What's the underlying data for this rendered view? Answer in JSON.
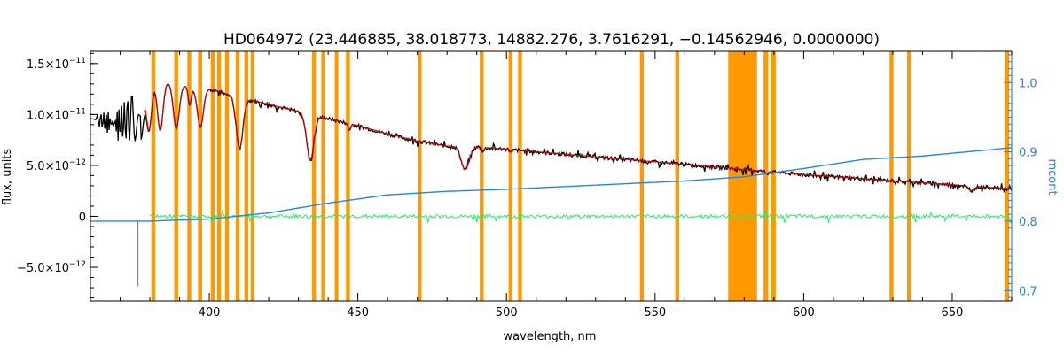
{
  "chart_data": {
    "type": "line",
    "title": "HD064972    (23.446885, 38.018773, 14882.276, 3.7616291, −0.14562946, 0.0000000)",
    "xlabel": "wavelength, nm",
    "ylabel_left": "flux, units",
    "ylabel_right": "mcont",
    "xlim": [
      360,
      670
    ],
    "ylim_left": [
      -8.3e-12,
      1.62e-11
    ],
    "ylim_right": [
      0.685,
      1.045
    ],
    "x_ticks": [
      {
        "value": 400,
        "label": "400"
      },
      {
        "value": 450,
        "label": "450"
      },
      {
        "value": 500,
        "label": "500"
      },
      {
        "value": 550,
        "label": "550"
      },
      {
        "value": 600,
        "label": "600"
      },
      {
        "value": 650,
        "label": "650"
      }
    ],
    "y_ticks_left": [
      {
        "value": 1.5e-11,
        "mant": "1.5",
        "exp": "−11"
      },
      {
        "value": 1e-11,
        "mant": "1.0",
        "exp": "−11"
      },
      {
        "value": 5e-12,
        "mant": "5.0",
        "exp": "−12"
      },
      {
        "value": 0,
        "mant": "0",
        "exp": ""
      },
      {
        "value": -5e-12,
        "mant": "−5.0",
        "exp": "−12"
      }
    ],
    "y_ticks_right": [
      {
        "value": 1.0,
        "label": "1.0"
      },
      {
        "value": 0.9,
        "label": "0.9"
      },
      {
        "value": 0.8,
        "label": "0.8"
      },
      {
        "value": 0.7,
        "label": "0.7"
      }
    ],
    "series": [
      {
        "key": "observed",
        "color": "#000000",
        "x": [
          360,
          370,
          375,
          380,
          385,
          390,
          395,
          400,
          410,
          420,
          430,
          440,
          450,
          460,
          470,
          480,
          490,
          500,
          520,
          540,
          560,
          580,
          600,
          620,
          640,
          660,
          670
        ],
        "y": [
          9.6e-12,
          9e-12,
          1e-11,
          1.3e-11,
          1.32e-11,
          1.3e-11,
          1.25e-11,
          1.25e-11,
          1.17e-11,
          1.1e-11,
          1.03e-11,
          9.6e-12,
          8.9e-12,
          8.1e-12,
          7.4e-12,
          6.9e-12,
          6.8e-12,
          6.6e-12,
          6.1e-12,
          5.6e-12,
          5.1e-12,
          4.6e-12,
          4.1e-12,
          3.7e-12,
          3.3e-12,
          2.9e-12,
          2.7e-12
        ]
      },
      {
        "key": "model",
        "color": "#d00000",
        "x": [
          378,
          385,
          390,
          395,
          400,
          410,
          420,
          430,
          440,
          450,
          460,
          470,
          480,
          490,
          500,
          520,
          540,
          560,
          580,
          600,
          620,
          640,
          660,
          670
        ],
        "y": [
          1.27e-11,
          1.32e-11,
          1.3e-11,
          1.25e-11,
          1.25e-11,
          1.17e-11,
          1.1e-11,
          1.03e-11,
          9.6e-12,
          8.9e-12,
          8.1e-12,
          7.4e-12,
          6.9e-12,
          6.8e-12,
          6.6e-12,
          6.1e-12,
          5.6e-12,
          5.1e-12,
          4.6e-12,
          4.1e-12,
          3.7e-12,
          3.3e-12,
          2.9e-12,
          2.7e-12
        ]
      },
      {
        "key": "residual",
        "color": "#22ee66",
        "x": [
          380,
          670
        ],
        "y": [
          0,
          0
        ]
      },
      {
        "key": "mcont",
        "axis": "right",
        "color": "#1e88e5",
        "x": [
          360,
          380,
          400,
          420,
          440,
          460,
          480,
          500,
          520,
          540,
          560,
          570,
          580,
          600,
          620,
          640,
          660,
          670
        ],
        "y": [
          0.8,
          0.8,
          0.803,
          0.812,
          0.826,
          0.838,
          0.843,
          0.846,
          0.85,
          0.854,
          0.858,
          0.861,
          0.864,
          0.876,
          0.889,
          0.894,
          0.902,
          0.906
        ]
      }
    ],
    "lines": [
      {
        "x": 397,
        "depth": 0.3,
        "width": 1.4
      },
      {
        "x": 388.9,
        "depth": 0.34,
        "width": 1.4
      },
      {
        "x": 383.5,
        "depth": 0.36,
        "width": 1.3
      },
      {
        "x": 379.7,
        "depth": 0.35,
        "width": 1.2
      },
      {
        "x": 377,
        "depth": 0.33,
        "width": 1.1
      },
      {
        "x": 393.4,
        "depth": 0.14,
        "width": 0.7
      },
      {
        "x": 410.2,
        "depth": 0.43,
        "width": 1.6
      },
      {
        "x": 434.0,
        "depth": 0.45,
        "width": 1.7
      },
      {
        "x": 447.1,
        "depth": 0.07,
        "width": 0.6
      },
      {
        "x": 486.1,
        "depth": 0.33,
        "width": 1.9
      },
      {
        "x": 492.2,
        "depth": 0.05,
        "width": 0.6
      },
      {
        "x": 501.6,
        "depth": 0.04,
        "width": 0.6
      },
      {
        "x": 587.6,
        "depth": 0.05,
        "width": 0.6
      },
      {
        "x": 656.3,
        "depth": 0.15,
        "width": 1.4
      }
    ],
    "balmer_jump": {
      "x_start": 362,
      "x_end": 377
    },
    "masked_regions": {
      "color": "#ff9900",
      "ranges": [
        [
          380.5,
          381.8
        ],
        [
          388.2,
          389.5
        ],
        [
          392.6,
          393.9
        ],
        [
          396.2,
          397.6
        ],
        [
          400.5,
          401.8
        ],
        [
          402.6,
          403.9
        ],
        [
          405.3,
          406.6
        ],
        [
          408.9,
          410.2
        ],
        [
          411.8,
          413.1
        ],
        [
          413.9,
          415.1
        ],
        [
          434.6,
          435.9
        ],
        [
          437.7,
          438.9
        ],
        [
          442.2,
          443.4
        ],
        [
          446.0,
          447.3
        ],
        [
          470.1,
          471.4
        ],
        [
          491.0,
          492.3
        ],
        [
          500.7,
          502.0
        ],
        [
          503.9,
          505.2
        ],
        [
          544.9,
          546.2
        ],
        [
          556.8,
          558.1
        ],
        [
          574.6,
          584.3
        ],
        [
          586.5,
          588.1
        ],
        [
          588.9,
          590.6
        ],
        [
          628.9,
          630.2
        ],
        [
          634.8,
          636.2
        ],
        [
          667.6,
          669.2
        ]
      ]
    },
    "blue_spike": {
      "x": 376,
      "y_right": 0.706
    },
    "grid": false,
    "legend": "none"
  }
}
